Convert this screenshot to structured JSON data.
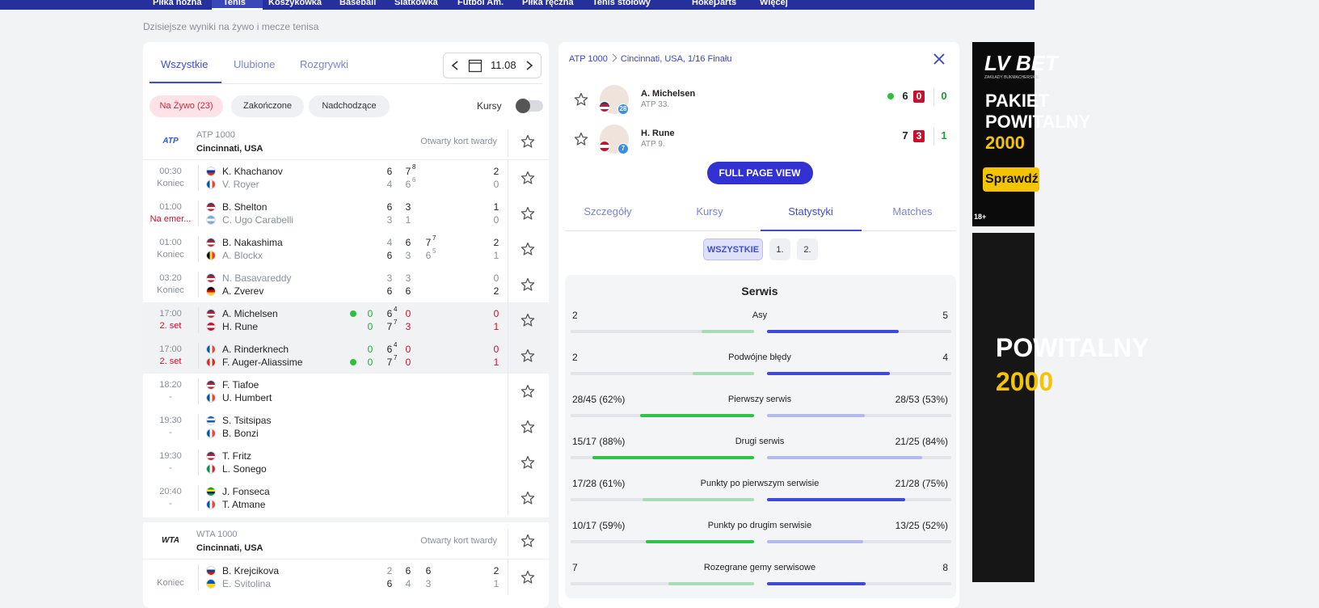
{
  "nav": {
    "items": [
      "Piłka nożna",
      "Tenis",
      "Koszykówka",
      "Baseball",
      "Siatkówka",
      "Futbol Am.",
      "Piłka ręczna",
      "Tenis stołowy",
      "Hokej",
      "Darts",
      "Więcej"
    ],
    "active": 1
  },
  "subtitle": "Dzisiejsze wyniki na żywo i mecze tenisa",
  "left_panel": {
    "tabs": [
      "Wszystkie",
      "Ulubione",
      "Rozgrywki"
    ],
    "date": "11.08",
    "filters": [
      "Na Żywo (23)",
      "Zakończone",
      "Nadchodzące"
    ],
    "odds_label": "Kursy",
    "tournaments": [
      {
        "logo": "ATP",
        "tier": "ATP 1000",
        "name": "Cincinnati, USA",
        "surface": "Otwarty kort twardy",
        "matches": [
          {
            "time": "00:30",
            "status": "Koniec",
            "players": [
              {
                "name": "K. Khachanov",
                "flag": {
                  "dir": "h",
                  "colors": [
                    "#ffffff",
                    "#0039a6",
                    "#d52b1e"
                  ]
                },
                "sets": [
                  {
                    "g": 6
                  },
                  {
                    "g": 7,
                    "tb": 8
                  }
                ],
                "total": 2
              },
              {
                "name": "V. Royer",
                "flag": {
                  "dir": "v",
                  "colors": [
                    "#0055a4",
                    "#ffffff",
                    "#ef4135"
                  ]
                },
                "sets": [
                  {
                    "g": 4
                  },
                  {
                    "g": 6,
                    "tb": 6
                  }
                ],
                "total": 0
              }
            ]
          },
          {
            "time": "01:00",
            "status": "Na emer...",
            "players": [
              {
                "name": "B. Shelton",
                "flag": {
                  "dir": "h",
                  "colors": [
                    "#3c3b6e",
                    "#b22234",
                    "#ffffff",
                    "#b22234"
                  ]
                },
                "sets": [
                  {
                    "g": 6
                  },
                  {
                    "g": 3
                  }
                ],
                "total": 1
              },
              {
                "name": "C. Ugo Carabelli",
                "flag": {
                  "dir": "h",
                  "colors": [
                    "#74acdf",
                    "#ffffff",
                    "#74acdf"
                  ]
                },
                "sets": [
                  {
                    "g": 3
                  },
                  {
                    "g": 1
                  }
                ],
                "total": 0
              }
            ]
          },
          {
            "time": "01:00",
            "status": "Koniec",
            "players": [
              {
                "name": "B. Nakashima",
                "flag": {
                  "dir": "h",
                  "colors": [
                    "#3c3b6e",
                    "#b22234",
                    "#ffffff",
                    "#b22234"
                  ]
                },
                "sets": [
                  {
                    "g": 4
                  },
                  {
                    "g": 6
                  },
                  {
                    "g": 7,
                    "tb": 7
                  }
                ],
                "total": 2
              },
              {
                "name": "A. Blockx",
                "flag": {
                  "dir": "v",
                  "colors": [
                    "#000000",
                    "#fdda24",
                    "#ef3340"
                  ]
                },
                "sets": [
                  {
                    "g": 6
                  },
                  {
                    "g": 3
                  },
                  {
                    "g": 6,
                    "tb": 5
                  }
                ],
                "total": 1
              }
            ]
          },
          {
            "time": "03:20",
            "status": "Koniec",
            "players": [
              {
                "name": "N. Basavareddy",
                "flag": {
                  "dir": "h",
                  "colors": [
                    "#3c3b6e",
                    "#b22234",
                    "#ffffff",
                    "#b22234"
                  ]
                },
                "sets": [
                  {
                    "g": 3
                  },
                  {
                    "g": 3
                  }
                ],
                "total": 0
              },
              {
                "name": "A. Zverev",
                "flag": {
                  "dir": "h",
                  "colors": [
                    "#000000",
                    "#dd0000",
                    "#ffce00"
                  ]
                },
                "sets": [
                  {
                    "g": 6
                  },
                  {
                    "g": 6
                  }
                ],
                "total": 2
              }
            ]
          },
          {
            "time": "17:00",
            "status": "2. set",
            "live": true,
            "players": [
              {
                "name": "A. Michelsen",
                "flag": {
                  "dir": "h",
                  "colors": [
                    "#3c3b6e",
                    "#b22234",
                    "#ffffff",
                    "#b22234"
                  ]
                },
                "serving": true,
                "point": 0,
                "sets": [
                  {
                    "g": 6,
                    "tb": 4
                  },
                  {
                    "g": 0
                  }
                ],
                "total": 0
              },
              {
                "name": "H. Rune",
                "flag": {
                  "dir": "h",
                  "colors": [
                    "#c8102e",
                    "#ffffff",
                    "#c8102e"
                  ]
                },
                "point": 0,
                "sets": [
                  {
                    "g": 7,
                    "tb": 7
                  },
                  {
                    "g": 3
                  }
                ],
                "total": 1
              }
            ]
          },
          {
            "time": "17:00",
            "status": "2. set",
            "live": true,
            "players": [
              {
                "name": "A. Rinderknech",
                "flag": {
                  "dir": "v",
                  "colors": [
                    "#0055a4",
                    "#ffffff",
                    "#ef4135"
                  ]
                },
                "point": 0,
                "sets": [
                  {
                    "g": 6,
                    "tb": 4
                  },
                  {
                    "g": 0
                  }
                ],
                "total": 0
              },
              {
                "name": "F. Auger-Aliassime",
                "flag": {
                  "dir": "v",
                  "colors": [
                    "#d52b1e",
                    "#ffffff",
                    "#d52b1e"
                  ]
                },
                "serving": true,
                "point": 0,
                "sets": [
                  {
                    "g": 7,
                    "tb": 7
                  },
                  {
                    "g": 0
                  }
                ],
                "total": 1
              }
            ]
          },
          {
            "time": "18:20",
            "status": "-",
            "players": [
              {
                "name": "F. Tiafoe",
                "flag": {
                  "dir": "h",
                  "colors": [
                    "#3c3b6e",
                    "#b22234",
                    "#ffffff",
                    "#b22234"
                  ]
                }
              },
              {
                "name": "U. Humbert",
                "flag": {
                  "dir": "v",
                  "colors": [
                    "#0055a4",
                    "#ffffff",
                    "#ef4135"
                  ]
                }
              }
            ]
          },
          {
            "time": "19:30",
            "status": "-",
            "players": [
              {
                "name": "S. Tsitsipas",
                "flag": {
                  "dir": "h",
                  "colors": [
                    "#0d5eaf",
                    "#ffffff",
                    "#0d5eaf",
                    "#ffffff"
                  ]
                }
              },
              {
                "name": "B. Bonzi",
                "flag": {
                  "dir": "v",
                  "colors": [
                    "#0055a4",
                    "#ffffff",
                    "#ef4135"
                  ]
                }
              }
            ]
          },
          {
            "time": "19:30",
            "status": "-",
            "players": [
              {
                "name": "T. Fritz",
                "flag": {
                  "dir": "h",
                  "colors": [
                    "#3c3b6e",
                    "#b22234",
                    "#ffffff",
                    "#b22234"
                  ]
                }
              },
              {
                "name": "L. Sonego",
                "flag": {
                  "dir": "v",
                  "colors": [
                    "#009246",
                    "#ffffff",
                    "#ce2b37"
                  ]
                }
              }
            ]
          },
          {
            "time": "20:40",
            "status": "-",
            "players": [
              {
                "name": "J. Fonseca",
                "flag": {
                  "dir": "h",
                  "colors": [
                    "#009c3b",
                    "#ffdf00",
                    "#002776",
                    "#009c3b"
                  ]
                }
              },
              {
                "name": "T. Atmane",
                "flag": {
                  "dir": "v",
                  "colors": [
                    "#0055a4",
                    "#ffffff",
                    "#ef4135"
                  ]
                }
              }
            ]
          }
        ]
      },
      {
        "logo": "WTA",
        "tier": "WTA 1000",
        "name": "Cincinnati, USA",
        "surface": "Otwarty kort twardy",
        "matches": [
          {
            "status": "Koniec",
            "players": [
              {
                "name": "B. Krejcikova",
                "flag": {
                  "dir": "h",
                  "colors": [
                    "#ffffff",
                    "#11457e",
                    "#d7141a"
                  ]
                },
                "sets": [
                  {
                    "g": 2
                  },
                  {
                    "g": 6
                  },
                  {
                    "g": 6
                  }
                ],
                "total": 2
              },
              {
                "name": "E. Svitolina",
                "flag": {
                  "dir": "h",
                  "colors": [
                    "#0057b7",
                    "#ffd700"
                  ]
                },
                "sets": [
                  {
                    "g": 6
                  },
                  {
                    "g": 4
                  },
                  {
                    "g": 3
                  }
                ],
                "total": 1
              }
            ]
          }
        ]
      }
    ]
  },
  "right_panel": {
    "breadcrumb": [
      "ATP 1000",
      "Cincinnati, USA, 1/16 Finału"
    ],
    "players": [
      {
        "name": "A. Michelsen",
        "rank": "ATP 33.",
        "badge": 28,
        "flag": {
          "dir": "h",
          "colors": [
            "#3c3b6e",
            "#b22234",
            "#ffffff",
            "#b22234"
          ]
        },
        "serving": true,
        "games": 6,
        "point": 0,
        "total": 0
      },
      {
        "name": "H. Rune",
        "rank": "ATP 9.",
        "badge": 7,
        "flag": {
          "dir": "h",
          "colors": [
            "#c8102e",
            "#ffffff",
            "#c8102e"
          ]
        },
        "games": 7,
        "point": 3,
        "total": 1
      }
    ],
    "button": "FULL PAGE VIEW",
    "tabs": [
      "Szczegóły",
      "Kursy",
      "Statystyki",
      "Matches"
    ],
    "active_tab": 2,
    "periods": [
      "WSZYSTKIE",
      "1.",
      "2."
    ],
    "active_period": 0,
    "section": "Serwis",
    "stats": [
      {
        "label": "Asy",
        "home": "2",
        "away": "5"
      },
      {
        "label": "Podwójne błędy",
        "home": "2",
        "away": "4"
      },
      {
        "label": "Pierwszy serwis",
        "home": "28/45 (62%)",
        "away": "28/53 (53%)"
      },
      {
        "label": "Drugi serwis",
        "home": "15/17 (88%)",
        "away": "21/25 (84%)"
      },
      {
        "label": "Punkty po pierwszym serwisie",
        "home": "17/28 (61%)",
        "away": "21/28 (75%)"
      },
      {
        "label": "Punkty po drugim serwisie",
        "home": "10/17 (59%)",
        "away": "13/25 (52%)"
      },
      {
        "label": "Rozegrane gemy serwisowe",
        "home": "7",
        "away": "8"
      }
    ]
  },
  "ad": {
    "brand": "LV BET",
    "tagline": "ZAKŁADY BUKMACHERSKIE",
    "lines": [
      "PAKIET",
      "POWITALNY",
      "2000"
    ],
    "cta": "Sprawdź",
    "age": "18+",
    "banner2_lines": [
      "POWITALNY",
      "2000"
    ]
  }
}
